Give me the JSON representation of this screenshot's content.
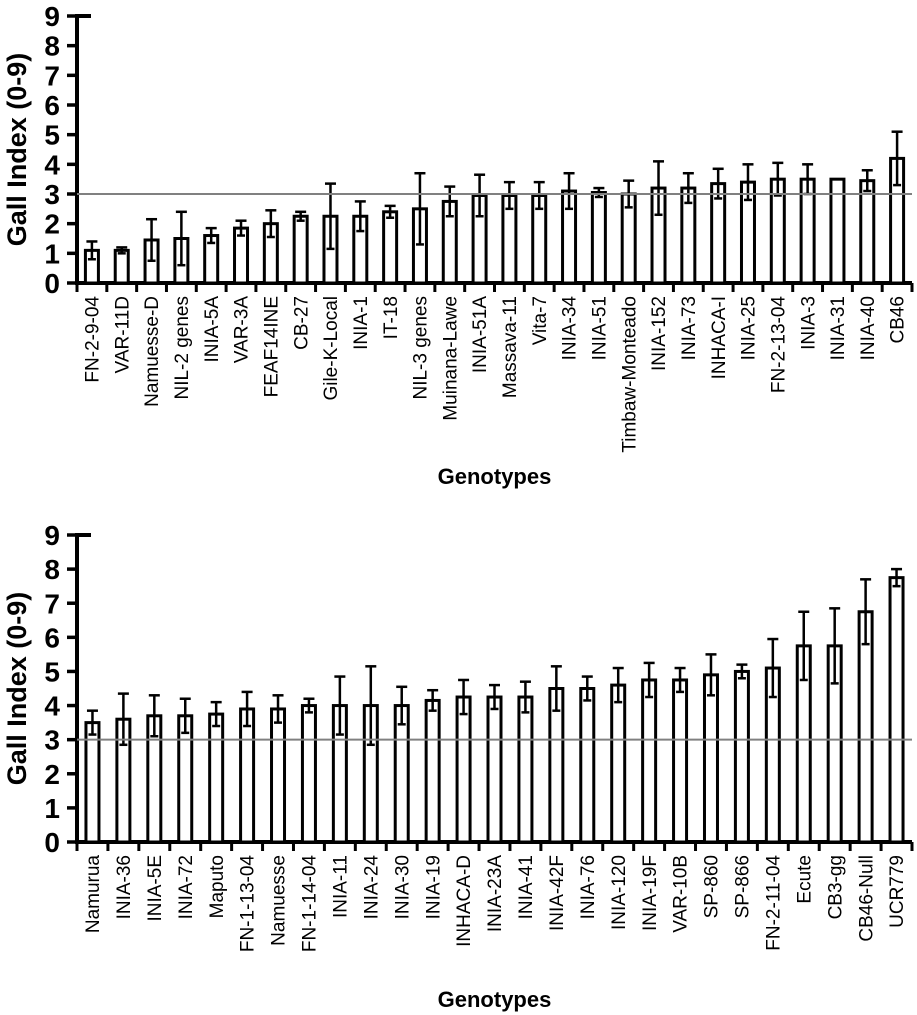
{
  "chart_data": [
    {
      "type": "bar",
      "panel": "top",
      "title": "",
      "xlabel": "Genotypes",
      "ylabel": "Gall Index (0-9)",
      "ylim": [
        0,
        9
      ],
      "yticks": [
        0,
        1,
        2,
        3,
        4,
        5,
        6,
        7,
        8,
        9
      ],
      "reference_line": 3,
      "grid": false,
      "legend": false,
      "error_bars": "symmetric",
      "categories": [
        "FN-2-9-04",
        "VAR-11D",
        "Namuesse-D",
        "NIL-2 genes",
        "INIA-5A",
        "VAR-3A",
        "FEAF14INE",
        "CB-27",
        "Gile-K-Local",
        "INIA-1",
        "IT-18",
        "NIL-3 genes",
        "Muinana-Lawe",
        "INIA-51A",
        "Massava-11",
        "Vita-7",
        "INIA-34",
        "INIA-51",
        "Timbaw-Monteado",
        "INIA-152",
        "INIA-73",
        "INHACA-I",
        "INIA-25",
        "FN-2-13-04",
        "INIA-3",
        "INIA-31",
        "INIA-40",
        "CB46"
      ],
      "values": [
        1.1,
        1.1,
        1.45,
        1.5,
        1.6,
        1.85,
        2.0,
        2.25,
        2.25,
        2.25,
        2.4,
        2.5,
        2.75,
        2.95,
        2.95,
        2.95,
        3.1,
        3.05,
        3.0,
        3.2,
        3.2,
        3.35,
        3.4,
        3.5,
        3.5,
        3.5,
        3.45,
        4.2
      ],
      "errors": [
        0.3,
        0.1,
        0.7,
        0.9,
        0.25,
        0.25,
        0.45,
        0.15,
        1.1,
        0.5,
        0.2,
        1.2,
        0.5,
        0.7,
        0.45,
        0.45,
        0.6,
        0.15,
        0.45,
        0.9,
        0.5,
        0.5,
        0.6,
        0.55,
        0.5,
        0,
        0.35,
        0.9
      ]
    },
    {
      "type": "bar",
      "panel": "bottom",
      "title": "",
      "xlabel": "Genotypes",
      "ylabel": "Gall Index (0-9)",
      "ylim": [
        0,
        9
      ],
      "yticks": [
        0,
        1,
        2,
        3,
        4,
        5,
        6,
        7,
        8,
        9
      ],
      "reference_line": 3,
      "grid": false,
      "legend": false,
      "error_bars": "symmetric",
      "categories": [
        "Namurua",
        "INIA-36",
        "INIA-5E",
        "INIA-72",
        "Maputo",
        "FN-1-13-04",
        "Namuesse",
        "FN-1-14-04",
        "INIA-11",
        "INIA-24",
        "INIA-30",
        "INIA-19",
        "INHACA-D",
        "INIA-23A",
        "INIA-41",
        "INIA-42F",
        "INIA-76",
        "INIA-120",
        "INIA-19F",
        "VAR-10B",
        "SP-860",
        "SP-866",
        "FN-2-11-04",
        "Ecute",
        "CB3-gg",
        "CB46-Null",
        "UCR779"
      ],
      "values": [
        3.5,
        3.6,
        3.7,
        3.7,
        3.75,
        3.9,
        3.9,
        4.0,
        4.0,
        4.0,
        4.0,
        4.15,
        4.25,
        4.25,
        4.25,
        4.5,
        4.5,
        4.6,
        4.75,
        4.75,
        4.9,
        5.0,
        5.1,
        5.75,
        5.75,
        6.75,
        7.75
      ],
      "errors": [
        0.35,
        0.75,
        0.6,
        0.5,
        0.35,
        0.5,
        0.4,
        0.2,
        0.85,
        1.15,
        0.55,
        0.3,
        0.5,
        0.35,
        0.45,
        0.65,
        0.35,
        0.5,
        0.5,
        0.35,
        0.6,
        0.2,
        0.85,
        1.0,
        1.1,
        0.95,
        0.25
      ]
    }
  ],
  "colors": {
    "background": "#ffffff",
    "bar_fill": "#ffffff",
    "bar_stroke": "#000000",
    "axis": "#000000",
    "text": "#000000",
    "reference_line": "#808080"
  }
}
